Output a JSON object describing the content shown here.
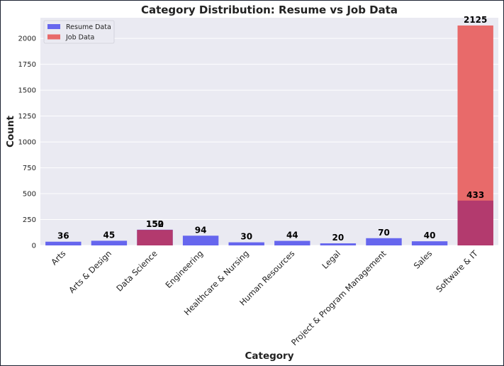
{
  "chart_data": {
    "type": "bar",
    "title": "Category Distribution: Resume vs Job Data",
    "xlabel": "Category",
    "ylabel": "Count",
    "ylim": [
      0,
      2200
    ],
    "yticks": [
      0,
      250,
      500,
      750,
      1000,
      1250,
      1500,
      1750,
      2000
    ],
    "grid": true,
    "legend_position": "top-left",
    "overlay": true,
    "categories": [
      "Arts",
      "Arts & Design",
      "Data Science",
      "Engineering",
      "Healthcare & Nursing",
      "Human Resources",
      "Legal",
      "Project & Program Management",
      "Sales",
      "Software & IT"
    ],
    "series": [
      {
        "name": "Resume Data",
        "color": "#6666ee",
        "values": [
          36,
          45,
          152,
          94,
          30,
          44,
          20,
          70,
          40,
          433
        ]
      },
      {
        "name": "Job Data",
        "color": "#e86a6a",
        "values": [
          null,
          null,
          150,
          null,
          null,
          null,
          null,
          null,
          null,
          2125
        ]
      }
    ],
    "overlap_color": "#b33a6e"
  }
}
